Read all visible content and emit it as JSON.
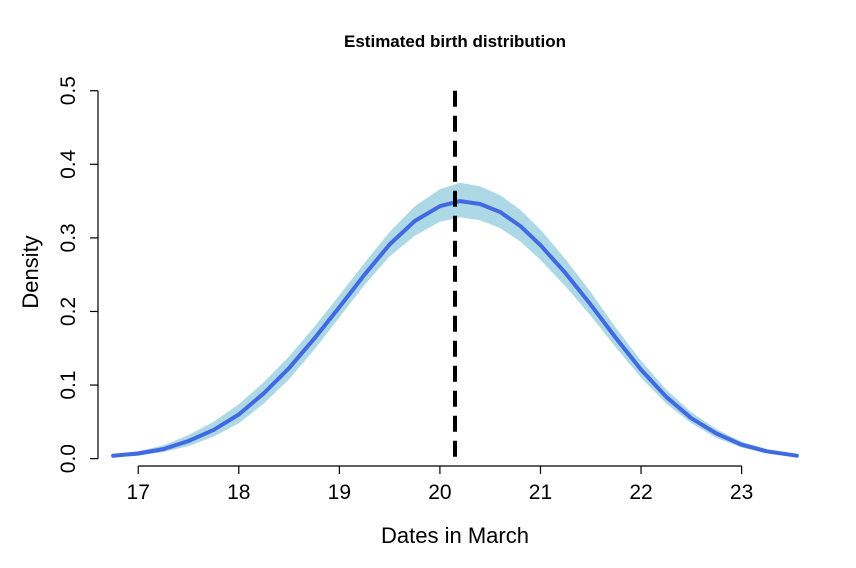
{
  "chart_data": {
    "type": "line",
    "title": "Estimated birth distribution",
    "xlabel": "Dates in March",
    "ylabel": "Density",
    "xlim": [
      16.6,
      23.7
    ],
    "ylim": [
      -0.01,
      0.52
    ],
    "x_ticks": [
      17,
      18,
      19,
      20,
      21,
      22,
      23
    ],
    "y_ticks": [
      0.0,
      0.1,
      0.2,
      0.3,
      0.4,
      0.5
    ],
    "y_tick_labels": [
      "0.0",
      "0.1",
      "0.2",
      "0.3",
      "0.4",
      "0.5"
    ],
    "grid": false,
    "legend": "none",
    "series": [
      {
        "kind": "line",
        "color": "#4169e1",
        "x": [
          16.75,
          17.0,
          17.25,
          17.5,
          17.75,
          18.0,
          18.25,
          18.5,
          18.75,
          19.0,
          19.25,
          19.5,
          19.75,
          20.0,
          20.2,
          20.4,
          20.6,
          20.8,
          21.0,
          21.25,
          21.5,
          21.75,
          22.0,
          22.25,
          22.5,
          22.75,
          23.0,
          23.25,
          23.55
        ],
        "y": [
          0.004,
          0.007,
          0.013,
          0.024,
          0.039,
          0.06,
          0.089,
          0.123,
          0.163,
          0.206,
          0.25,
          0.291,
          0.323,
          0.343,
          0.35,
          0.346,
          0.335,
          0.316,
          0.29,
          0.252,
          0.209,
          0.164,
          0.121,
          0.084,
          0.055,
          0.034,
          0.019,
          0.01,
          0.004
        ]
      }
    ],
    "band": {
      "color": "#add8e6",
      "x": [
        16.75,
        17.0,
        17.25,
        17.5,
        17.75,
        18.0,
        18.25,
        18.5,
        18.75,
        19.0,
        19.25,
        19.5,
        19.75,
        20.0,
        20.2,
        20.4,
        20.6,
        20.8,
        21.0,
        21.25,
        21.5,
        21.75,
        22.0,
        22.25,
        22.5,
        22.75,
        23.0,
        23.25,
        23.55
      ],
      "lower": [
        0.002,
        0.004,
        0.009,
        0.017,
        0.03,
        0.048,
        0.075,
        0.108,
        0.148,
        0.192,
        0.236,
        0.275,
        0.303,
        0.322,
        0.328,
        0.324,
        0.313,
        0.295,
        0.27,
        0.234,
        0.194,
        0.151,
        0.11,
        0.075,
        0.048,
        0.028,
        0.015,
        0.007,
        0.002
      ],
      "upper": [
        0.006,
        0.01,
        0.018,
        0.032,
        0.05,
        0.074,
        0.104,
        0.139,
        0.179,
        0.222,
        0.266,
        0.308,
        0.343,
        0.366,
        0.375,
        0.37,
        0.358,
        0.338,
        0.311,
        0.271,
        0.226,
        0.178,
        0.133,
        0.094,
        0.063,
        0.04,
        0.023,
        0.013,
        0.006
      ]
    },
    "vline": {
      "x": 20.15,
      "y_from": 0.0,
      "y_to": 0.5,
      "style": "dashed",
      "color": "#000000"
    }
  }
}
